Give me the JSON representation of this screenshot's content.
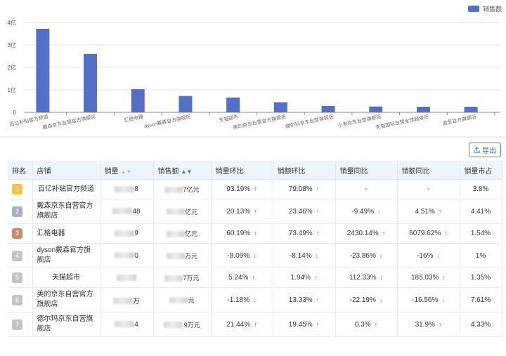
{
  "chart_data": {
    "type": "bar",
    "series": [
      {
        "name": "销售额",
        "values": [
          3.72,
          2.6,
          1.03,
          0.73,
          0.66,
          0.45,
          0.28,
          0.26,
          0.25,
          0.25
        ]
      }
    ],
    "categories": [
      "百亿补贴官方频道",
      "戴森京东自营官方旗舰店",
      "汇格电器",
      "dyson戴森官方旗舰店",
      "天猫超市",
      "美的京东自营官方旗舰店",
      "德尔玛京东自营旗舰店",
      "小米京东自营旗舰店",
      "天猫国际自营全球超级店",
      "追觅官方旗舰店"
    ],
    "y_ticks": [
      "0",
      "1亿",
      "2亿",
      "3亿",
      "4亿"
    ],
    "ylim": [
      0,
      4
    ],
    "color": "#5470c6",
    "legend_position": "top-right",
    "grid": true
  },
  "toolbar": {
    "export_label": "导出"
  },
  "table": {
    "headers": [
      "排名",
      "店铺",
      "销量",
      "销售额",
      "销量环比",
      "销额环比",
      "销量同比",
      "销额同比",
      "销量市占"
    ],
    "rows": [
      {
        "rank": "1",
        "badge": "#f5c242",
        "shop": "百亿补贴官方频道",
        "sales_suffix": "8",
        "amount_suffix": "7亿元",
        "vol_mom": "93.19%",
        "vol_mom_dir": "up",
        "amt_mom": "79.08%",
        "amt_mom_dir": "up",
        "vol_yoy": "-",
        "vol_yoy_dir": "",
        "amt_yoy": "-",
        "amt_yoy_dir": "",
        "share": "3.8%"
      },
      {
        "rank": "2",
        "badge": "#a7b0c9",
        "shop": "戴森京东自营官方旗舰店",
        "sales_suffix": "48",
        "amount_suffix": "亿元",
        "vol_mom": "20.13%",
        "vol_mom_dir": "up",
        "amt_mom": "23.46%",
        "amt_mom_dir": "up",
        "vol_yoy": "-9.49%",
        "vol_yoy_dir": "down",
        "amt_yoy": "4.51%",
        "amt_yoy_dir": "up",
        "share": "4.41%"
      },
      {
        "rank": "3",
        "badge": "#c98a6d",
        "shop": "汇格电器",
        "sales_suffix": "9",
        "amount_suffix": "亿元",
        "vol_mom": "60.19%",
        "vol_mom_dir": "up",
        "amt_mom": "73.49%",
        "amt_mom_dir": "up",
        "vol_yoy": "2430.14%",
        "vol_yoy_dir": "up",
        "amt_yoy": "6079.62%",
        "amt_yoy_dir": "up",
        "share": "1.54%"
      },
      {
        "rank": "4",
        "badge": "#c4c4c4",
        "shop": "dyson戴森官方旗舰店",
        "sales_suffix": "0",
        "amount_suffix": "万元",
        "vol_mom": "-8.09%",
        "vol_mom_dir": "down",
        "amt_mom": "-8.14%",
        "amt_mom_dir": "down",
        "vol_yoy": "-23.86%",
        "vol_yoy_dir": "down",
        "amt_yoy": "-16%",
        "amt_yoy_dir": "down",
        "share": "1%"
      },
      {
        "rank": "5",
        "badge": "#c4c4c4",
        "shop": "天猫超市",
        "sales_suffix": "",
        "amount_suffix": "7万元",
        "vol_mom": "5.24%",
        "vol_mom_dir": "up",
        "amt_mom": "1.94%",
        "amt_mom_dir": "up",
        "vol_yoy": "112.33%",
        "vol_yoy_dir": "up",
        "amt_yoy": "185.03%",
        "amt_yoy_dir": "up",
        "share": "1.35%"
      },
      {
        "rank": "6",
        "badge": "#c4c4c4",
        "shop": "美的京东自营官方旗舰店",
        "sales_suffix": "万",
        "amount_suffix": "元",
        "vol_mom": "-1.18%",
        "vol_mom_dir": "down",
        "amt_mom": "13.33%",
        "amt_mom_dir": "up",
        "vol_yoy": "-22.19%",
        "vol_yoy_dir": "down",
        "amt_yoy": "-16.56%",
        "amt_yoy_dir": "down",
        "share": "7.61%"
      },
      {
        "rank": "7",
        "badge": "#c4c4c4",
        "shop": "德尔玛京东自营旗舰店",
        "sales_suffix": "4",
        "amount_suffix": ".9万元",
        "vol_mom": "21.44%",
        "vol_mom_dir": "up",
        "amt_mom": "19.45%",
        "amt_mom_dir": "up",
        "vol_yoy": "0.3%",
        "vol_yoy_dir": "up",
        "amt_yoy": "31.9%",
        "amt_yoy_dir": "up",
        "share": "4.33%"
      }
    ]
  }
}
